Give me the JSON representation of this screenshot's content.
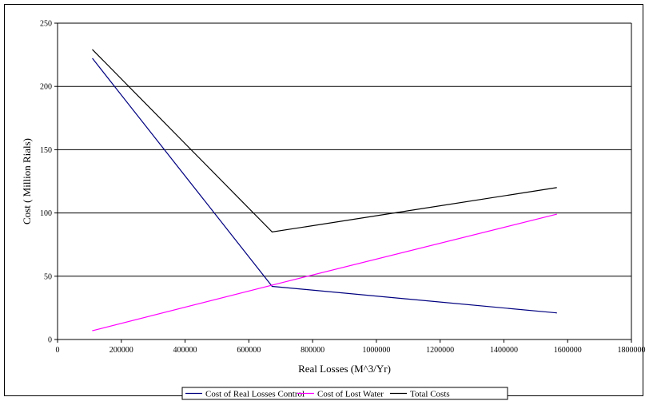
{
  "chart_data": {
    "type": "line",
    "title": "",
    "xlabel": "Real Losses (M^3/Yr)",
    "ylabel": "Cost ( Million Rials)",
    "xlim": [
      0,
      1800000
    ],
    "ylim": [
      0,
      250
    ],
    "x_ticks": [
      0,
      200000,
      400000,
      600000,
      800000,
      1000000,
      1200000,
      1400000,
      1600000,
      1800000
    ],
    "y_ticks": [
      0,
      50,
      100,
      150,
      200,
      250
    ],
    "grid": "horizontal",
    "legend_position": "bottom",
    "series": [
      {
        "name": "Cost of Real Losses Control",
        "color": "#000080",
        "points": [
          [
            110000,
            222
          ],
          [
            673000,
            42
          ],
          [
            1565000,
            21
          ]
        ]
      },
      {
        "name": "Cost of Lost Water",
        "color": "#ff00ff",
        "points": [
          [
            110000,
            7
          ],
          [
            673000,
            43
          ],
          [
            1565000,
            99
          ]
        ]
      },
      {
        "name": "Total Costs",
        "color": "#000000",
        "points": [
          [
            110000,
            229
          ],
          [
            673000,
            85
          ],
          [
            1565000,
            120
          ]
        ]
      }
    ]
  }
}
